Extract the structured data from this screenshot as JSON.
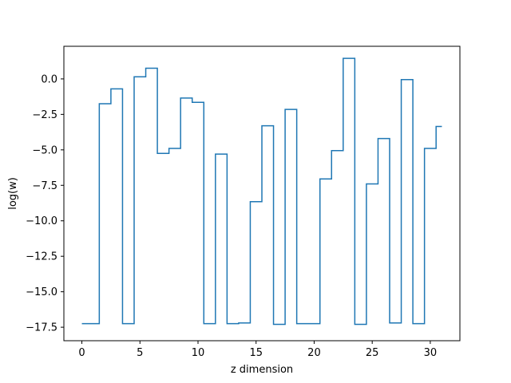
{
  "chart_data": {
    "type": "line",
    "drawstyle": "steps-mid",
    "title": "",
    "xlabel": "z dimension",
    "ylabel": "log(w)",
    "xlim": [
      -1.55,
      32.55
    ],
    "ylim": [
      -18.45,
      2.3
    ],
    "grid": false,
    "line_color": "#1f77b4",
    "x_ticks": [
      0,
      5,
      10,
      15,
      20,
      25,
      30
    ],
    "x_tick_labels": [
      "0",
      "5",
      "10",
      "15",
      "20",
      "25",
      "30"
    ],
    "y_ticks": [
      0.0,
      -2.5,
      -5.0,
      -7.5,
      -10.0,
      -12.5,
      -15.0,
      -17.5
    ],
    "y_tick_labels": [
      "0.0",
      "−2.5",
      "−5.0",
      "−7.5",
      "−10.0",
      "−12.5",
      "−15.0",
      "−17.5"
    ],
    "series": [
      {
        "x": [
          0,
          1,
          2,
          3,
          4,
          5,
          6,
          7,
          8,
          9,
          10,
          11,
          12,
          13,
          14,
          15,
          16,
          17,
          18,
          19,
          20,
          21,
          22,
          23,
          24,
          25,
          26,
          27,
          28,
          29,
          30,
          31
        ],
        "values": [
          -17.25,
          -17.25,
          -1.75,
          -0.7,
          -17.25,
          0.15,
          0.75,
          -5.25,
          -4.9,
          -1.35,
          -1.65,
          -17.25,
          -5.3,
          -17.25,
          -17.2,
          -8.65,
          -3.3,
          -17.3,
          -2.15,
          -17.25,
          -17.25,
          -7.05,
          -5.05,
          1.45,
          -17.3,
          -7.4,
          -4.2,
          -17.2,
          -0.05,
          -17.25,
          -4.9,
          -3.35
        ]
      }
    ]
  }
}
